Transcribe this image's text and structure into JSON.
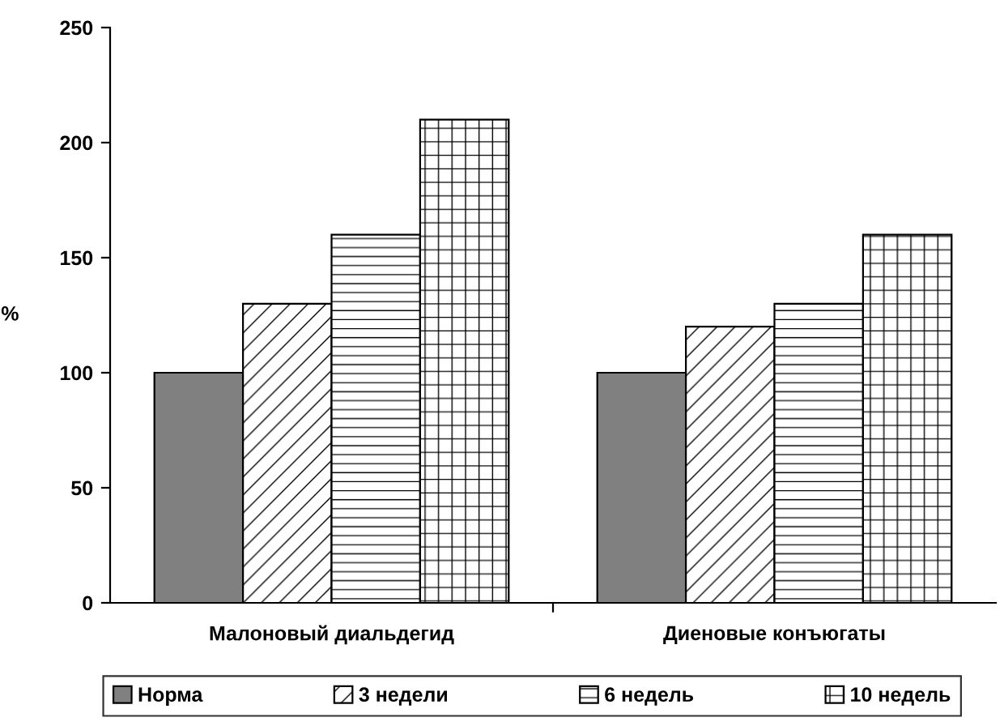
{
  "chart_data": {
    "type": "bar",
    "ylabel": "%",
    "categories": [
      "Малоновый диальдегид",
      "Диеновые конъюгаты"
    ],
    "series": [
      {
        "name": "Норма",
        "color": "#808080",
        "values": [
          100,
          100
        ]
      },
      {
        "name": "3 недели",
        "color": "#ffffff",
        "values": [
          130,
          120
        ]
      },
      {
        "name": "6 недель",
        "color": "#ffffff",
        "values": [
          160,
          130
        ]
      },
      {
        "name": "10 недель",
        "color": "#ffffff",
        "values": [
          210,
          160
        ]
      }
    ],
    "ylim": [
      0,
      250
    ],
    "yticks": [
      0,
      50,
      100,
      150,
      200,
      250
    ],
    "grid": false,
    "legend": "bottom"
  }
}
